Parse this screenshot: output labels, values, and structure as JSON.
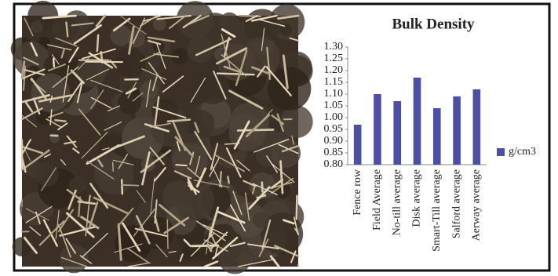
{
  "chart_data": {
    "type": "bar",
    "title": "Bulk Density",
    "categories": [
      "Fence row",
      "Field Average",
      "No-till average",
      "Disk average",
      "Smart-Till average",
      "Salford average",
      "Aerway average"
    ],
    "series": [
      {
        "name": "g/cm3",
        "color": "#4b4fa6",
        "values": [
          0.97,
          1.1,
          1.07,
          1.17,
          1.04,
          1.09,
          1.12
        ]
      }
    ],
    "ylim": [
      0.8,
      1.3
    ],
    "yticks": [
      {
        "value": 0.8,
        "label": "0.80"
      },
      {
        "value": 0.85,
        "label": "0.85"
      },
      {
        "value": 0.9,
        "label": "0.90"
      },
      {
        "value": 0.95,
        "label": "0.95"
      },
      {
        "value": 1.0,
        "label": "1.00"
      },
      {
        "value": 1.05,
        "label": "1.05"
      },
      {
        "value": 1.1,
        "label": "1.10"
      },
      {
        "value": 1.15,
        "label": "1.15"
      },
      {
        "value": 1.2,
        "label": "1.20"
      },
      {
        "value": 1.25,
        "label": "1.25"
      },
      {
        "value": 1.3,
        "label": "1.30"
      }
    ],
    "grid": false,
    "legend": "right"
  }
}
